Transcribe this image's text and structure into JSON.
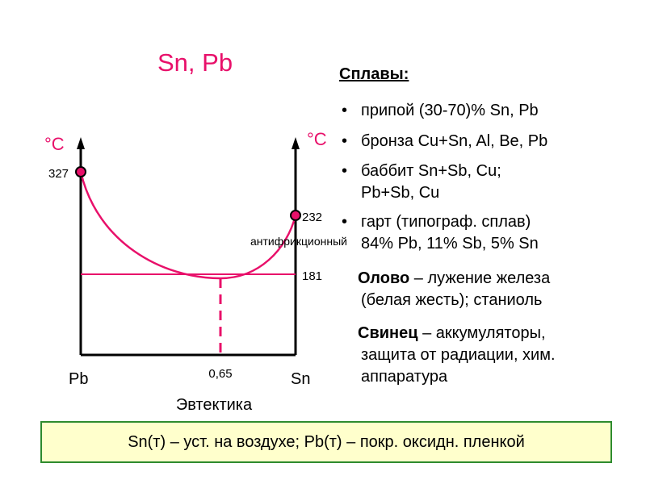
{
  "title": "Sn, Pb",
  "diagram": {
    "unit_left": "°C",
    "unit_right": "°C",
    "pb_melt": "327",
    "sn_melt": "232",
    "eutectic_temp": "181",
    "left_element": "Pb",
    "right_element": "Sn",
    "eutectic_composition": "0,65",
    "eutectic_label": "Эвтектика",
    "annotation": "антифрикционный"
  },
  "alloys": {
    "heading": "Сплавы:",
    "items": [
      [
        "припой (30-70)% Sn, Pb"
      ],
      [
        "бронза Cu+Sn, Al, Be, Pb"
      ],
      [
        "баббит Sn+Sb, Cu;",
        "Pb+Sb, Cu"
      ],
      [
        "гарт (типограф. сплав)",
        "84% Pb, 11% Sb, 5% Sn"
      ]
    ]
  },
  "notes": [
    {
      "term": "Олово",
      "lines": [
        "– лужение железа",
        "(белая жесть); станиоль"
      ]
    },
    {
      "term": "Свинец",
      "lines": [
        "– аккумуляторы,",
        "защита от радиации, хим.",
        "аппаратура"
      ]
    }
  ],
  "footer": "Sn(т) – уст. на воздухе; Pb(т) – покр. оксидн. пленкой"
}
